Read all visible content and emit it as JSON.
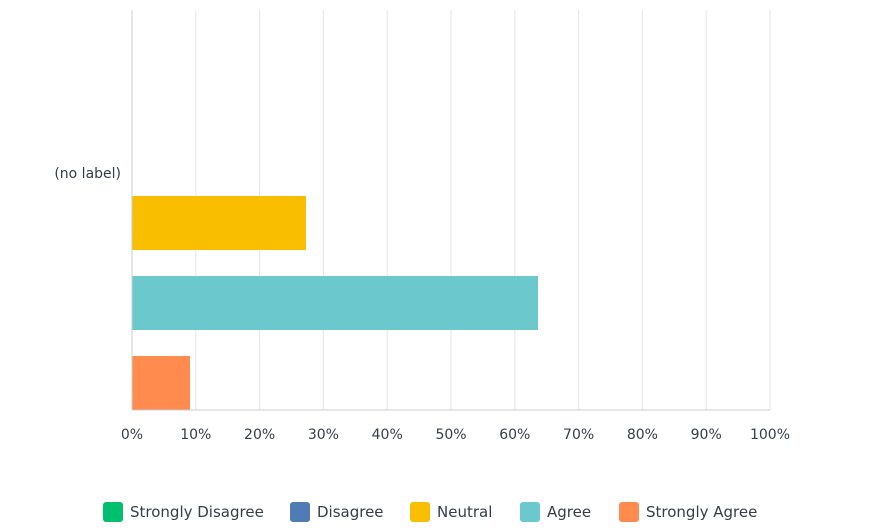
{
  "chart_data": {
    "type": "bar",
    "orientation": "horizontal",
    "categories": [
      "(no label)"
    ],
    "series": [
      {
        "name": "Strongly Disagree",
        "color": "#00bf6f",
        "values": [
          0
        ]
      },
      {
        "name": "Disagree",
        "color": "#507cb6",
        "values": [
          0
        ]
      },
      {
        "name": "Neutral",
        "color": "#f9be00",
        "values": [
          27.27
        ]
      },
      {
        "name": "Agree",
        "color": "#6bc8cd",
        "values": [
          63.64
        ]
      },
      {
        "name": "Strongly Agree",
        "color": "#ff8b4f",
        "values": [
          9.09
        ]
      }
    ],
    "x_ticks": [
      "0%",
      "10%",
      "20%",
      "30%",
      "40%",
      "50%",
      "60%",
      "70%",
      "80%",
      "90%",
      "100%"
    ],
    "xlim": [
      0,
      100
    ],
    "grid": true,
    "legend_position": "bottom"
  }
}
